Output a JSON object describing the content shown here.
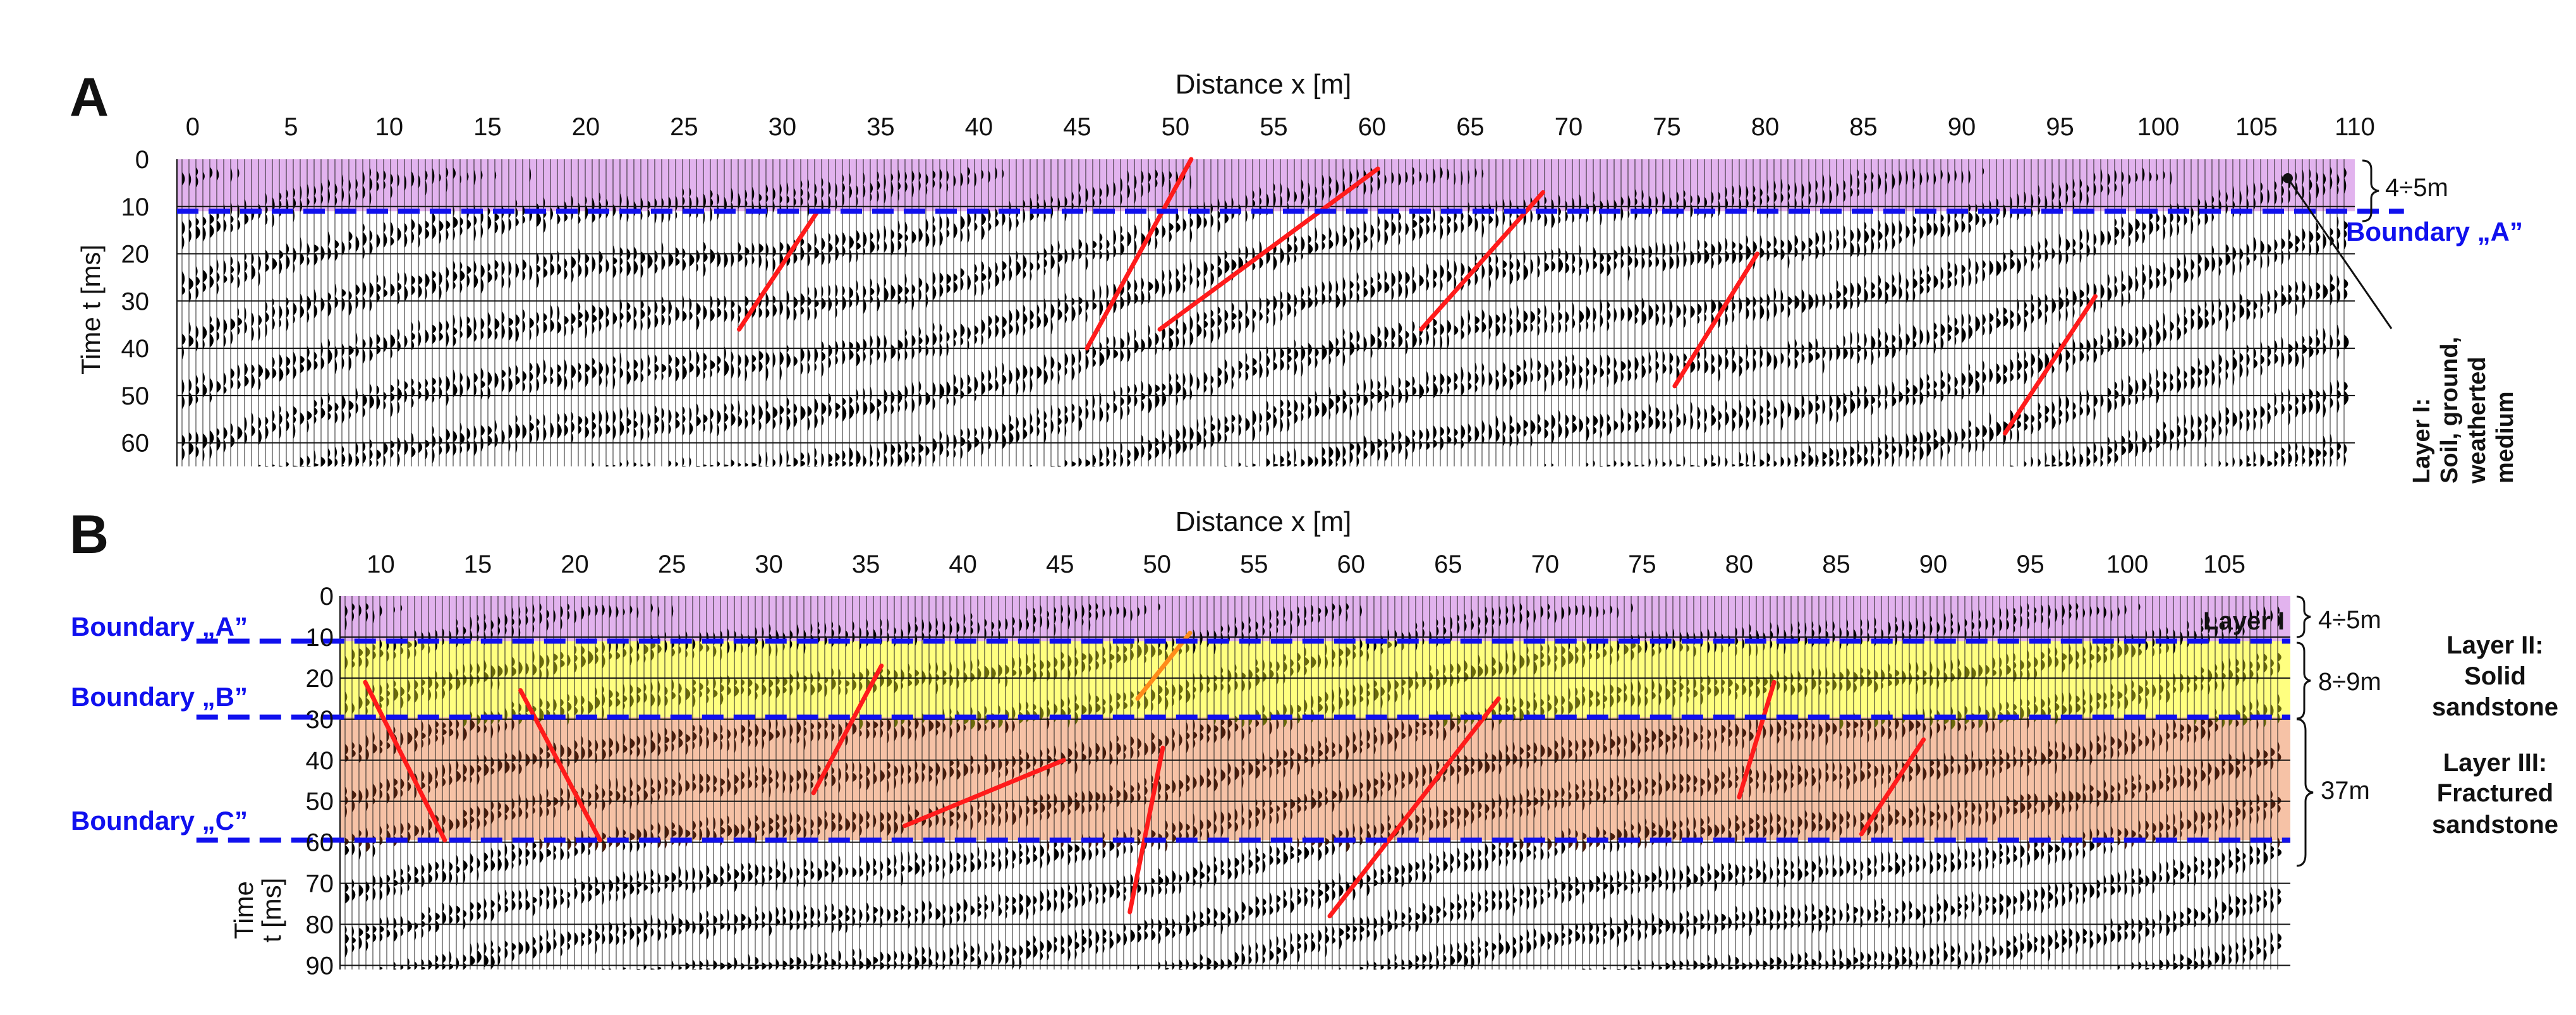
{
  "colors": {
    "layer1": "#e2b3ee",
    "layer2": "#ffff80",
    "layer3": "#f6c2a6",
    "wiggle_default": "#000000",
    "wiggle_layer2": "#6b6b0a",
    "wiggle_layer3": "#4a1d0c",
    "boundary": "#1010ee",
    "fault": "#ff1b1b",
    "fault_layer2": "#ff8c1a"
  },
  "panels": [
    {
      "id": "A",
      "letter": "A",
      "x_title": "Distance  x [m]",
      "y_title": "Time  t [ms]",
      "x_ticks": [
        0,
        5,
        10,
        15,
        20,
        25,
        30,
        35,
        40,
        45,
        50,
        55,
        60,
        65,
        70,
        75,
        80,
        85,
        90,
        95,
        100,
        105,
        110
      ],
      "x_range": [
        -0.8,
        110
      ],
      "y_ticks": [
        0,
        10,
        20,
        30,
        40,
        50,
        60
      ],
      "y_range": [
        0,
        65
      ],
      "layers": [
        {
          "name": "layer1",
          "t_top": 0,
          "t_bottom": 11,
          "x_start": -0.8,
          "x_end": 110
        }
      ],
      "boundaries": [
        {
          "name": "A",
          "t": 11,
          "x_start": -0.8,
          "x_end": 112.5
        }
      ],
      "faults": [
        [
          [
            27.8,
            36
          ],
          [
            31.8,
            11
          ]
        ],
        [
          [
            45.5,
            40
          ],
          [
            50.8,
            0
          ]
        ],
        [
          [
            49.2,
            36
          ],
          [
            60.3,
            2
          ]
        ],
        [
          [
            62.5,
            36
          ],
          [
            68.7,
            7
          ]
        ],
        [
          [
            75.4,
            48
          ],
          [
            79.6,
            20
          ]
        ],
        [
          [
            92.2,
            58
          ],
          [
            96.8,
            29
          ]
        ]
      ],
      "annotations": {
        "thickness": "4÷5m",
        "boundary_label": "Boundary „A”",
        "layer_label": [
          "Layer I:",
          "Soil, ground,",
          "weatherted",
          "medium"
        ]
      }
    },
    {
      "id": "B",
      "letter": "B",
      "x_title": "Distance  x [m]",
      "y_title": [
        "Time",
        "t [ms]"
      ],
      "x_ticks": [
        10,
        15,
        20,
        25,
        30,
        35,
        40,
        45,
        50,
        55,
        60,
        65,
        70,
        75,
        80,
        85,
        90,
        95,
        100,
        105
      ],
      "x_range": [
        7.9,
        108.4
      ],
      "y_ticks": [
        0,
        10,
        20,
        30,
        40,
        50,
        60,
        70,
        80,
        90
      ],
      "y_range": [
        0,
        91
      ],
      "layers": [
        {
          "name": "layer1",
          "t_top": 0,
          "t_bottom": 11,
          "x_start": 7.9,
          "x_end": 108.4
        },
        {
          "name": "layer2",
          "t_top": 11,
          "t_bottom": 29.5,
          "x_start": 7.9,
          "x_end": 108.4
        },
        {
          "name": "layer3",
          "t_top": 29.5,
          "t_bottom": 59.5,
          "x_start": 7.9,
          "x_end": 108.4
        }
      ],
      "boundaries": [
        {
          "name": "A",
          "t": 11,
          "x_start": 0.5,
          "x_end": 108.4
        },
        {
          "name": "B",
          "t": 29.5,
          "x_start": 0.5,
          "x_end": 108.4
        },
        {
          "name": "C",
          "t": 59.5,
          "x_start": 0.5,
          "x_end": 108.4
        }
      ],
      "faults": [
        [
          [
            9.2,
            21
          ],
          [
            13.3,
            59.5
          ]
        ],
        [
          [
            17.2,
            23
          ],
          [
            21.3,
            59.5
          ]
        ],
        [
          [
            32.3,
            48
          ],
          [
            35.8,
            17
          ]
        ],
        [
          [
            37.0,
            56
          ],
          [
            45.2,
            40
          ]
        ],
        [
          [
            48.6,
            77
          ],
          [
            50.3,
            37
          ]
        ],
        [
          [
            49.0,
            25
          ],
          [
            51.7,
            9
          ]
        ],
        [
          [
            58.9,
            78
          ],
          [
            67.6,
            25
          ]
        ],
        [
          [
            80.0,
            49
          ],
          [
            81.8,
            21
          ]
        ],
        [
          [
            86.3,
            58
          ],
          [
            89.5,
            35
          ]
        ]
      ],
      "annotations": {
        "boundary_labels": [
          "Boundary „A”",
          "Boundary „B”",
          "Boundary „C”"
        ],
        "layer_inside_label": "Layer I",
        "thicknesses": [
          "4÷5m",
          "8÷9m",
          "37m"
        ],
        "layer2_label": [
          "Layer II:",
          "Solid",
          "sandstone"
        ],
        "layer3_label": [
          "Layer III:",
          "Fractured",
          "sandstone"
        ]
      }
    }
  ]
}
